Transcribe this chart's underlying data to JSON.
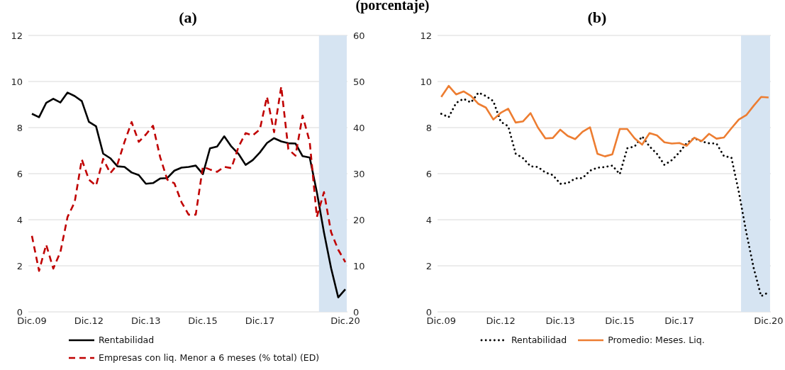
{
  "chart_data": [
    {
      "type": "line",
      "title": "(a)",
      "annotations": [
        "(porcentaje)"
      ],
      "categories": [
        "Dic.09",
        null,
        null,
        null,
        null,
        null,
        null,
        null,
        "Dic.12",
        null,
        null,
        null,
        null,
        null,
        null,
        null,
        "Dic.13",
        null,
        null,
        null,
        null,
        null,
        null,
        null,
        "Dic.15",
        null,
        null,
        null,
        null,
        null,
        null,
        null,
        "Dic.17",
        null,
        null,
        null,
        null,
        null,
        null,
        null,
        null,
        null,
        null,
        null,
        "Dic.20"
      ],
      "series": [
        {
          "name": "Rentabilidad",
          "color": "#000000",
          "line_style": "solid",
          "values": [
            8.6,
            8.45,
            9.07,
            9.25,
            9.09,
            9.52,
            9.37,
            9.15,
            8.25,
            8.06,
            6.87,
            6.67,
            6.32,
            6.29,
            6.05,
            5.94,
            5.56,
            5.59,
            5.79,
            5.81,
            6.13,
            6.26,
            6.29,
            6.35,
            5.98,
            7.1,
            7.18,
            7.62,
            7.18,
            6.86,
            6.38,
            6.59,
            6.92,
            7.33,
            7.54,
            7.4,
            7.32,
            7.31,
            6.76,
            6.7,
            5.2,
            3.45,
            1.9,
            0.63,
            0.98
          ]
        },
        {
          "name": "Empresas con liq. Menor a 6 meses (% total) (ED)",
          "color": "#c00000",
          "line_style": "dashed",
          "axis": "y2",
          "values": [
            16.5,
            8.9,
            14.6,
            9.4,
            13,
            20.6,
            23.8,
            33.1,
            28.7,
            27.4,
            33.2,
            30.1,
            32,
            36.9,
            41.2,
            36.9,
            38.5,
            40.4,
            33.6,
            28.7,
            27.9,
            23.8,
            21.1,
            21.1,
            31.5,
            30.9,
            30.4,
            31.5,
            31.2,
            35.8,
            38.8,
            38.3,
            39.6,
            46.7,
            39,
            48.9,
            35.3,
            33.9,
            42.6,
            36.9,
            20.6,
            26,
            17.3,
            13.5,
            10.8
          ]
        }
      ],
      "ylim": [
        0,
        12
      ],
      "yticks": [
        0,
        2,
        4,
        6,
        8,
        10,
        12
      ],
      "y2lim": [
        0,
        60
      ],
      "y2ticks": [
        0,
        10,
        20,
        30,
        40,
        50,
        60
      ],
      "grid": "y",
      "legend": "bottom"
    },
    {
      "type": "line",
      "title": "(b)",
      "categories": [
        "Dic.09",
        null,
        null,
        null,
        null,
        null,
        null,
        null,
        "Dic.12",
        null,
        null,
        null,
        null,
        null,
        null,
        null,
        "Dic.13",
        null,
        null,
        null,
        null,
        null,
        null,
        null,
        "Dic.15",
        null,
        null,
        null,
        null,
        null,
        null,
        null,
        "Dic.17",
        null,
        null,
        null,
        null,
        null,
        null,
        null,
        null,
        null,
        null,
        null,
        "Dic.20"
      ],
      "series": [
        {
          "name": "Rentabilidad",
          "color": "#000000",
          "line_style": "dotted",
          "values": [
            8.6,
            8.45,
            9.07,
            9.25,
            9.09,
            9.52,
            9.37,
            9.15,
            8.25,
            8.06,
            6.87,
            6.67,
            6.32,
            6.29,
            6.05,
            5.94,
            5.56,
            5.59,
            5.79,
            5.81,
            6.13,
            6.26,
            6.29,
            6.35,
            5.98,
            7.1,
            7.18,
            7.62,
            7.18,
            6.86,
            6.38,
            6.59,
            6.92,
            7.33,
            7.54,
            7.4,
            7.32,
            7.31,
            6.76,
            6.7,
            5.2,
            3.45,
            1.9,
            0.68,
            0.85
          ]
        },
        {
          "name": "Promedio: Meses. Liq.",
          "color": "#ed7d31",
          "line_style": "solid",
          "values": [
            9.33,
            9.81,
            9.44,
            9.57,
            9.37,
            9.03,
            8.87,
            8.35,
            8.64,
            8.82,
            8.22,
            8.27,
            8.63,
            8.0,
            7.53,
            7.55,
            7.91,
            7.64,
            7.5,
            7.82,
            8.01,
            6.86,
            6.75,
            6.84,
            7.94,
            7.94,
            7.53,
            7.26,
            7.76,
            7.66,
            7.36,
            7.31,
            7.33,
            7.21,
            7.56,
            7.41,
            7.73,
            7.52,
            7.57,
            7.97,
            8.35,
            8.54,
            8.95,
            9.33,
            9.31
          ]
        }
      ],
      "ylim": [
        0,
        12
      ],
      "yticks": [
        0,
        2,
        4,
        6,
        8,
        10,
        12
      ],
      "grid": "y",
      "legend": "bottom"
    }
  ]
}
